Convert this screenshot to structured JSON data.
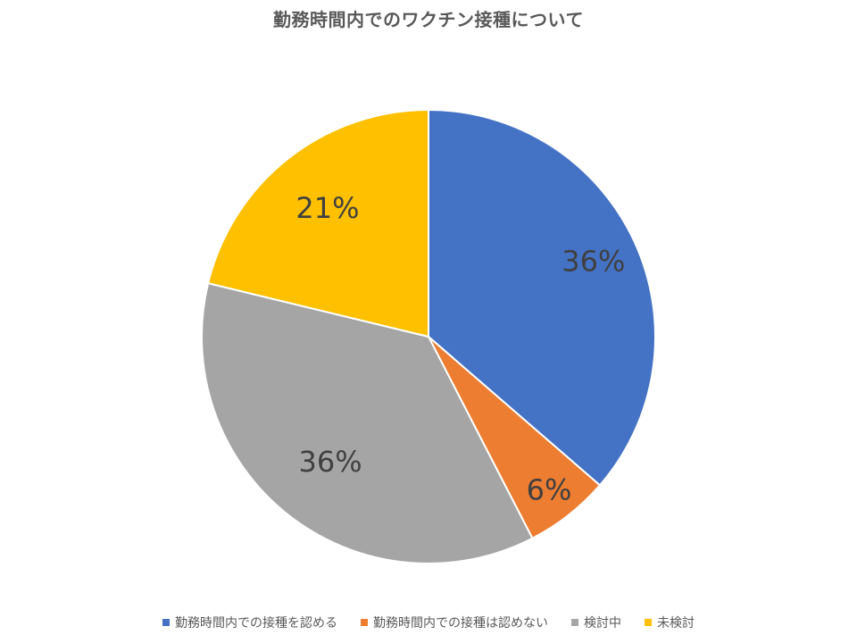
{
  "chart_data": {
    "type": "pie",
    "title": "勤務時間内でのワクチン接種について",
    "categories": [
      "勤務時間内での接種を認める",
      "勤務時間内での接種は認めない",
      "検討中",
      "未検討"
    ],
    "values": [
      36,
      6,
      36,
      21
    ],
    "labels": [
      "36%",
      "6%",
      "36%",
      "21%"
    ],
    "colors": [
      "#4472C4",
      "#ED7D31",
      "#A5A5A5",
      "#FFC000"
    ],
    "legend_position": "bottom",
    "data_label_color": "#404040"
  }
}
